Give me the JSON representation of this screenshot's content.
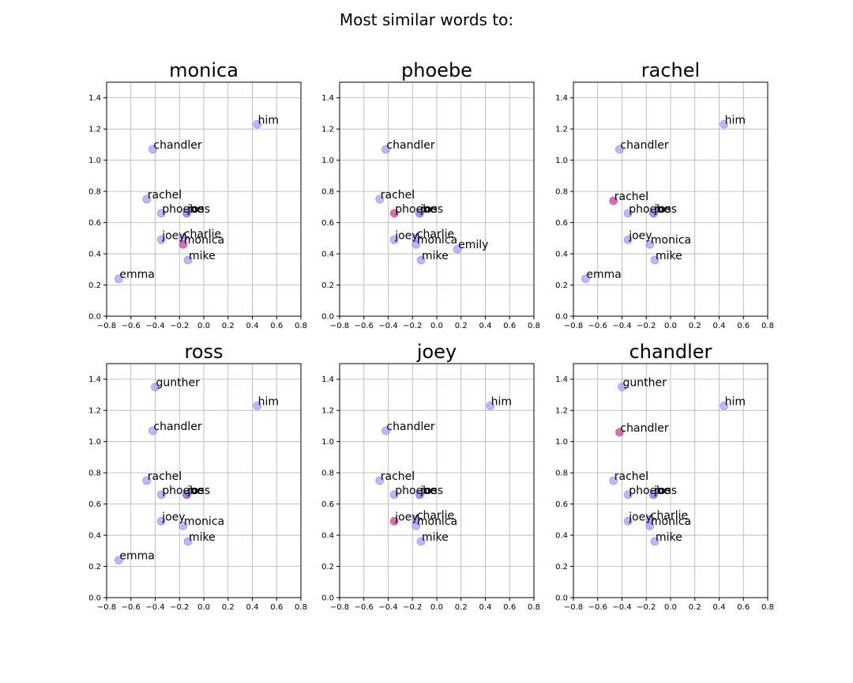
{
  "figure": {
    "suptitle": "Most similar words to:",
    "colors": {
      "neighbor": "#8080ff",
      "highlight": "#c8409a"
    }
  },
  "chart_data": [
    {
      "type": "scatter",
      "title": "monica",
      "xlim": [
        -0.8,
        0.8
      ],
      "ylim": [
        0,
        1.5
      ],
      "xticks": [
        "−0.8",
        "−0.6",
        "−0.4",
        "−0.2",
        "0.0",
        "0.2",
        "0.4",
        "0.6",
        "0.8"
      ],
      "yticks": [
        "0.0",
        "0.2",
        "0.4",
        "0.6",
        "0.8",
        "1.0",
        "1.2",
        "1.4"
      ],
      "grid": true,
      "points": [
        {
          "label": "him",
          "x": 0.44,
          "y": 1.23,
          "highlight": false
        },
        {
          "label": "chandler",
          "x": -0.42,
          "y": 1.07,
          "highlight": false
        },
        {
          "label": "rachel",
          "x": -0.47,
          "y": 0.75,
          "highlight": false
        },
        {
          "label": "phoebe",
          "x": -0.35,
          "y": 0.66,
          "highlight": false
        },
        {
          "label": "ross",
          "x": -0.14,
          "y": 0.66,
          "highlight": false
        },
        {
          "label": "joe",
          "x": -0.14,
          "y": 0.66,
          "highlight": false
        },
        {
          "label": "joey",
          "x": -0.35,
          "y": 0.49,
          "highlight": false
        },
        {
          "label": "charlie",
          "x": -0.17,
          "y": 0.5,
          "highlight": false
        },
        {
          "label": "monica",
          "x": -0.17,
          "y": 0.46,
          "highlight": true
        },
        {
          "label": "mike",
          "x": -0.13,
          "y": 0.36,
          "highlight": false
        },
        {
          "label": "emma",
          "x": -0.7,
          "y": 0.24,
          "highlight": false
        }
      ]
    },
    {
      "type": "scatter",
      "title": "phoebe",
      "xlim": [
        -0.8,
        0.8
      ],
      "ylim": [
        0,
        1.5
      ],
      "xticks": [
        "−0.8",
        "−0.6",
        "−0.4",
        "−0.2",
        "0.0",
        "0.2",
        "0.4",
        "0.6",
        "0.8"
      ],
      "yticks": [
        "0.0",
        "0.2",
        "0.4",
        "0.6",
        "0.8",
        "1.0",
        "1.2",
        "1.4"
      ],
      "grid": true,
      "points": [
        {
          "label": "chandler",
          "x": -0.42,
          "y": 1.07,
          "highlight": false
        },
        {
          "label": "rachel",
          "x": -0.47,
          "y": 0.75,
          "highlight": false
        },
        {
          "label": "phoebe",
          "x": -0.35,
          "y": 0.66,
          "highlight": true
        },
        {
          "label": "ross",
          "x": -0.14,
          "y": 0.66,
          "highlight": false
        },
        {
          "label": "joe",
          "x": -0.14,
          "y": 0.66,
          "highlight": false
        },
        {
          "label": "joey",
          "x": -0.35,
          "y": 0.49,
          "highlight": false
        },
        {
          "label": "charlie",
          "x": -0.17,
          "y": 0.5,
          "highlight": false
        },
        {
          "label": "monica",
          "x": -0.17,
          "y": 0.46,
          "highlight": false
        },
        {
          "label": "emily",
          "x": 0.17,
          "y": 0.43,
          "highlight": false
        },
        {
          "label": "mike",
          "x": -0.13,
          "y": 0.36,
          "highlight": false
        }
      ]
    },
    {
      "type": "scatter",
      "title": "rachel",
      "xlim": [
        -0.8,
        0.8
      ],
      "ylim": [
        0,
        1.5
      ],
      "xticks": [
        "−0.8",
        "−0.6",
        "−0.4",
        "−0.2",
        "0.0",
        "0.2",
        "0.4",
        "0.6",
        "0.8"
      ],
      "yticks": [
        "0.0",
        "0.2",
        "0.4",
        "0.6",
        "0.8",
        "1.0",
        "1.2",
        "1.4"
      ],
      "grid": true,
      "points": [
        {
          "label": "him",
          "x": 0.44,
          "y": 1.23,
          "highlight": false
        },
        {
          "label": "chandler",
          "x": -0.42,
          "y": 1.07,
          "highlight": false
        },
        {
          "label": "rachel",
          "x": -0.47,
          "y": 0.74,
          "highlight": true
        },
        {
          "label": "phoebe",
          "x": -0.35,
          "y": 0.66,
          "highlight": false
        },
        {
          "label": "ross",
          "x": -0.14,
          "y": 0.66,
          "highlight": false
        },
        {
          "label": "joe",
          "x": -0.14,
          "y": 0.66,
          "highlight": false
        },
        {
          "label": "joey",
          "x": -0.35,
          "y": 0.49,
          "highlight": false
        },
        {
          "label": "monica",
          "x": -0.17,
          "y": 0.46,
          "highlight": false
        },
        {
          "label": "mike",
          "x": -0.13,
          "y": 0.36,
          "highlight": false
        },
        {
          "label": "emma",
          "x": -0.7,
          "y": 0.24,
          "highlight": false
        }
      ]
    },
    {
      "type": "scatter",
      "title": "ross",
      "xlim": [
        -0.8,
        0.8
      ],
      "ylim": [
        0,
        1.5
      ],
      "xticks": [
        "−0.8",
        "−0.6",
        "−0.4",
        "−0.2",
        "0.0",
        "0.2",
        "0.4",
        "0.6",
        "0.8"
      ],
      "yticks": [
        "0.0",
        "0.2",
        "0.4",
        "0.6",
        "0.8",
        "1.0",
        "1.2",
        "1.4"
      ],
      "grid": true,
      "points": [
        {
          "label": "gunther",
          "x": -0.4,
          "y": 1.35,
          "highlight": false
        },
        {
          "label": "him",
          "x": 0.44,
          "y": 1.23,
          "highlight": false
        },
        {
          "label": "chandler",
          "x": -0.42,
          "y": 1.07,
          "highlight": false
        },
        {
          "label": "rachel",
          "x": -0.47,
          "y": 0.75,
          "highlight": false
        },
        {
          "label": "phoebe",
          "x": -0.35,
          "y": 0.66,
          "highlight": false
        },
        {
          "label": "ross",
          "x": -0.14,
          "y": 0.66,
          "highlight": true
        },
        {
          "label": "joe",
          "x": -0.14,
          "y": 0.66,
          "highlight": false
        },
        {
          "label": "joey",
          "x": -0.35,
          "y": 0.49,
          "highlight": false
        },
        {
          "label": "monica",
          "x": -0.17,
          "y": 0.46,
          "highlight": false
        },
        {
          "label": "mike",
          "x": -0.13,
          "y": 0.36,
          "highlight": false
        },
        {
          "label": "emma",
          "x": -0.7,
          "y": 0.24,
          "highlight": false
        }
      ]
    },
    {
      "type": "scatter",
      "title": "joey",
      "xlim": [
        -0.8,
        0.8
      ],
      "ylim": [
        0,
        1.5
      ],
      "xticks": [
        "−0.8",
        "−0.6",
        "−0.4",
        "−0.2",
        "0.0",
        "0.2",
        "0.4",
        "0.6",
        "0.8"
      ],
      "yticks": [
        "0.0",
        "0.2",
        "0.4",
        "0.6",
        "0.8",
        "1.0",
        "1.2",
        "1.4"
      ],
      "grid": true,
      "points": [
        {
          "label": "him",
          "x": 0.44,
          "y": 1.23,
          "highlight": false
        },
        {
          "label": "chandler",
          "x": -0.42,
          "y": 1.07,
          "highlight": false
        },
        {
          "label": "rachel",
          "x": -0.47,
          "y": 0.75,
          "highlight": false
        },
        {
          "label": "phoebe",
          "x": -0.35,
          "y": 0.66,
          "highlight": false
        },
        {
          "label": "ross",
          "x": -0.14,
          "y": 0.66,
          "highlight": false
        },
        {
          "label": "joe",
          "x": -0.14,
          "y": 0.66,
          "highlight": false
        },
        {
          "label": "joey",
          "x": -0.35,
          "y": 0.49,
          "highlight": true
        },
        {
          "label": "charlie",
          "x": -0.17,
          "y": 0.5,
          "highlight": false
        },
        {
          "label": "monica",
          "x": -0.17,
          "y": 0.46,
          "highlight": false
        },
        {
          "label": "mike",
          "x": -0.13,
          "y": 0.36,
          "highlight": false
        }
      ]
    },
    {
      "type": "scatter",
      "title": "chandler",
      "xlim": [
        -0.8,
        0.8
      ],
      "ylim": [
        0,
        1.5
      ],
      "xticks": [
        "−0.8",
        "−0.6",
        "−0.4",
        "−0.2",
        "0.0",
        "0.2",
        "0.4",
        "0.6",
        "0.8"
      ],
      "yticks": [
        "0.0",
        "0.2",
        "0.4",
        "0.6",
        "0.8",
        "1.0",
        "1.2",
        "1.4"
      ],
      "grid": true,
      "points": [
        {
          "label": "gunther",
          "x": -0.4,
          "y": 1.35,
          "highlight": false
        },
        {
          "label": "him",
          "x": 0.44,
          "y": 1.23,
          "highlight": false
        },
        {
          "label": "chandler",
          "x": -0.42,
          "y": 1.06,
          "highlight": true
        },
        {
          "label": "rachel",
          "x": -0.47,
          "y": 0.75,
          "highlight": false
        },
        {
          "label": "phoebe",
          "x": -0.35,
          "y": 0.66,
          "highlight": false
        },
        {
          "label": "ross",
          "x": -0.14,
          "y": 0.66,
          "highlight": false
        },
        {
          "label": "joe",
          "x": -0.14,
          "y": 0.66,
          "highlight": false
        },
        {
          "label": "joey",
          "x": -0.35,
          "y": 0.49,
          "highlight": false
        },
        {
          "label": "charlie",
          "x": -0.17,
          "y": 0.5,
          "highlight": false
        },
        {
          "label": "monica",
          "x": -0.17,
          "y": 0.46,
          "highlight": false
        },
        {
          "label": "mike",
          "x": -0.13,
          "y": 0.36,
          "highlight": false
        }
      ]
    }
  ]
}
